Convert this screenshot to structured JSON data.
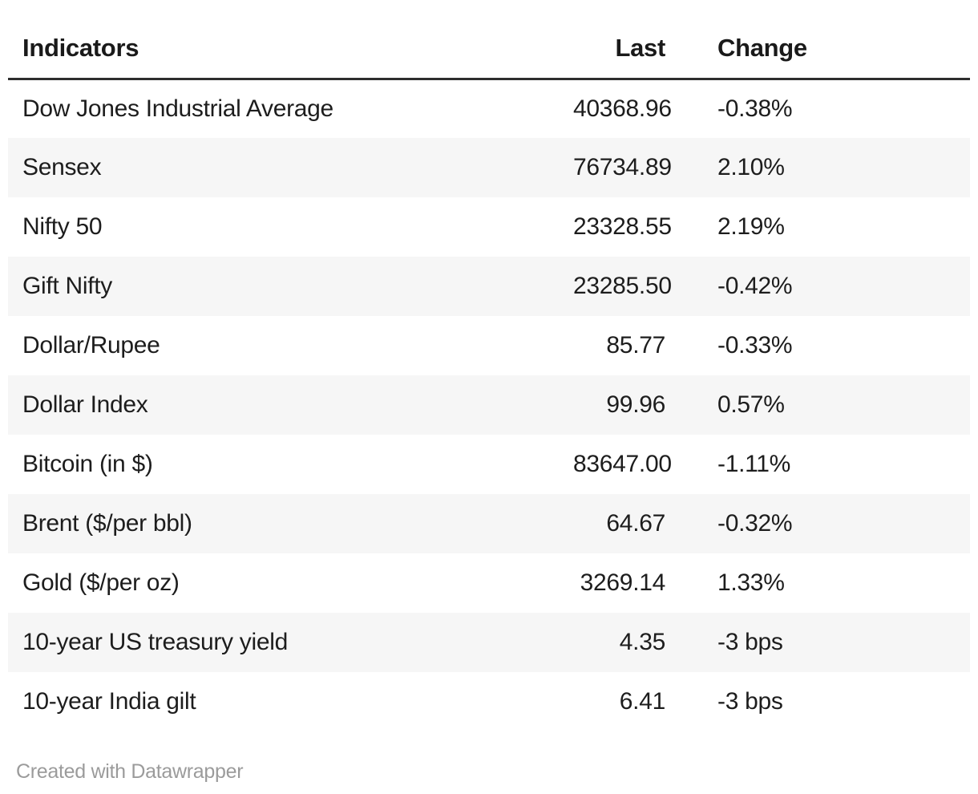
{
  "colors": {
    "background": "#ffffff",
    "header_text": "#1a1a1a",
    "body_text": "#1d1d1d",
    "stripe": "#f6f6f6",
    "header_rule": "#2e2e2e",
    "credit_text": "#9b9b9b"
  },
  "table": {
    "header": {
      "indicator": "Indicators",
      "last": "Last",
      "change": "Change"
    },
    "rows": [
      {
        "indicator": "Dow Jones Industrial Average",
        "last": "40368.96",
        "change": "-0.38%"
      },
      {
        "indicator": "Sensex",
        "last": "76734.89",
        "change": "2.10%"
      },
      {
        "indicator": "Nifty 50",
        "last": "23328.55",
        "change": "2.19%"
      },
      {
        "indicator": "Gift Nifty",
        "last": "23285.50",
        "change": "-0.42%"
      },
      {
        "indicator": "Dollar/Rupee",
        "last": "85.77",
        "change": "-0.33%"
      },
      {
        "indicator": "Dollar Index",
        "last": "99.96",
        "change": "0.57%"
      },
      {
        "indicator": "Bitcoin (in $)",
        "last": "83647.00",
        "change": "-1.11%"
      },
      {
        "indicator": "Brent ($/per bbl)",
        "last": "64.67",
        "change": "-0.32%"
      },
      {
        "indicator": "Gold ($/per oz)",
        "last": "3269.14",
        "change": "1.33%"
      },
      {
        "indicator": "10-year US treasury yield",
        "last": "4.35",
        "change": "-3 bps"
      },
      {
        "indicator": "10-year India gilt",
        "last": "6.41",
        "change": "-3 bps"
      }
    ]
  },
  "footer": {
    "credit": "Created with Datawrapper"
  },
  "chart_data": {
    "type": "table",
    "title": "",
    "columns": [
      "Indicators",
      "Last",
      "Change"
    ],
    "rows": [
      [
        "Dow Jones Industrial Average",
        40368.96,
        "-0.38%"
      ],
      [
        "Sensex",
        76734.89,
        "2.10%"
      ],
      [
        "Nifty 50",
        23328.55,
        "2.19%"
      ],
      [
        "Gift Nifty",
        23285.5,
        "-0.42%"
      ],
      [
        "Dollar/Rupee",
        85.77,
        "-0.33%"
      ],
      [
        "Dollar Index",
        99.96,
        "0.57%"
      ],
      [
        "Bitcoin (in $)",
        83647.0,
        "-1.11%"
      ],
      [
        "Brent ($/per bbl)",
        64.67,
        "-0.32%"
      ],
      [
        "Gold ($/per oz)",
        3269.14,
        "1.33%"
      ],
      [
        "10-year US treasury yield",
        4.35,
        "-3 bps"
      ],
      [
        "10-year India gilt",
        6.41,
        "-3 bps"
      ]
    ],
    "layout": {
      "striped_rows": true,
      "stripe_on": "even",
      "last_column_align": "right",
      "change_column_align": "left"
    }
  }
}
